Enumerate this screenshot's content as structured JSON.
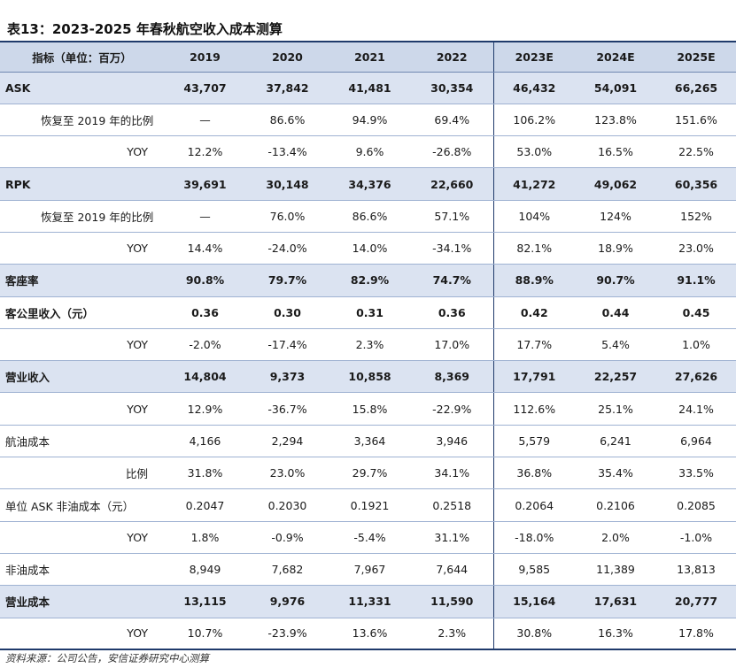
{
  "title": "表13：2023-2025 年春秋航空收入成本测算",
  "source": "资料来源：公司公告，安信证券研究中心测算",
  "header": [
    "指标（单位：百万）",
    "2019",
    "2020",
    "2021",
    "2022",
    "2023E",
    "2024E",
    "2025E"
  ],
  "rows": [
    {
      "label": "ASK",
      "style": "bold-hl",
      "indent": "none",
      "values": [
        "43,707",
        "37,842",
        "41,481",
        "30,354",
        "46,432",
        "54,091",
        "66,265"
      ]
    },
    {
      "label": "恢复至 2019 年的比例",
      "style": "plain",
      "indent": "in1",
      "values": [
        "—",
        "86.6%",
        "94.9%",
        "69.4%",
        "106.2%",
        "123.8%",
        "151.6%"
      ]
    },
    {
      "label": "YOY",
      "style": "plain",
      "indent": "right",
      "values": [
        "12.2%",
        "-13.4%",
        "9.6%",
        "-26.8%",
        "53.0%",
        "16.5%",
        "22.5%"
      ]
    },
    {
      "label": "RPK",
      "style": "bold-hl",
      "indent": "none",
      "values": [
        "39,691",
        "30,148",
        "34,376",
        "22,660",
        "41,272",
        "49,062",
        "60,356"
      ]
    },
    {
      "label": "恢复至 2019 年的比例",
      "style": "plain",
      "indent": "in1",
      "values": [
        "—",
        "76.0%",
        "86.6%",
        "57.1%",
        "104%",
        "124%",
        "152%"
      ]
    },
    {
      "label": "YOY",
      "style": "plain",
      "indent": "right",
      "values": [
        "14.4%",
        "-24.0%",
        "14.0%",
        "-34.1%",
        "82.1%",
        "18.9%",
        "23.0%"
      ]
    },
    {
      "label": "客座率",
      "style": "bold-hl",
      "indent": "none",
      "values": [
        "90.8%",
        "79.7%",
        "82.9%",
        "74.7%",
        "88.9%",
        "90.7%",
        "91.1%"
      ]
    },
    {
      "label": "客公里收入（元）",
      "style": "bold",
      "indent": "none",
      "values": [
        "0.36",
        "0.30",
        "0.31",
        "0.36",
        "0.42",
        "0.44",
        "0.45"
      ]
    },
    {
      "label": "YOY",
      "style": "plain",
      "indent": "right",
      "values": [
        "-2.0%",
        "-17.4%",
        "2.3%",
        "17.0%",
        "17.7%",
        "5.4%",
        "1.0%"
      ]
    },
    {
      "label": "营业收入",
      "style": "bold-hl",
      "indent": "none",
      "values": [
        "14,804",
        "9,373",
        "10,858",
        "8,369",
        "17,791",
        "22,257",
        "27,626"
      ]
    },
    {
      "label": "YOY",
      "style": "plain",
      "indent": "right",
      "values": [
        "12.9%",
        "-36.7%",
        "15.8%",
        "-22.9%",
        "112.6%",
        "25.1%",
        "24.1%"
      ]
    },
    {
      "label": "航油成本",
      "style": "plain",
      "indent": "none",
      "values": [
        "4,166",
        "2,294",
        "3,364",
        "3,946",
        "5,579",
        "6,241",
        "6,964"
      ]
    },
    {
      "label": "比例",
      "style": "plain",
      "indent": "right",
      "values": [
        "31.8%",
        "23.0%",
        "29.7%",
        "34.1%",
        "36.8%",
        "35.4%",
        "33.5%"
      ]
    },
    {
      "label": "单位 ASK 非油成本（元）",
      "style": "plain",
      "indent": "none",
      "values": [
        "0.2047",
        "0.2030",
        "0.1921",
        "0.2518",
        "0.2064",
        "0.2106",
        "0.2085"
      ]
    },
    {
      "label": "YOY",
      "style": "plain",
      "indent": "right",
      "values": [
        "1.8%",
        "-0.9%",
        "-5.4%",
        "31.1%",
        "-18.0%",
        "2.0%",
        "-1.0%"
      ]
    },
    {
      "label": "非油成本",
      "style": "plain",
      "indent": "none",
      "values": [
        "8,949",
        "7,682",
        "7,967",
        "7,644",
        "9,585",
        "11,389",
        "13,813"
      ]
    },
    {
      "label": "营业成本",
      "style": "bold-hl",
      "indent": "none",
      "values": [
        "13,115",
        "9,976",
        "11,331",
        "11,590",
        "15,164",
        "17,631",
        "20,777"
      ]
    },
    {
      "label": "YOY",
      "style": "plain",
      "indent": "right",
      "values": [
        "10.7%",
        "-23.9%",
        "13.6%",
        "2.3%",
        "30.8%",
        "16.3%",
        "17.8%"
      ]
    }
  ]
}
